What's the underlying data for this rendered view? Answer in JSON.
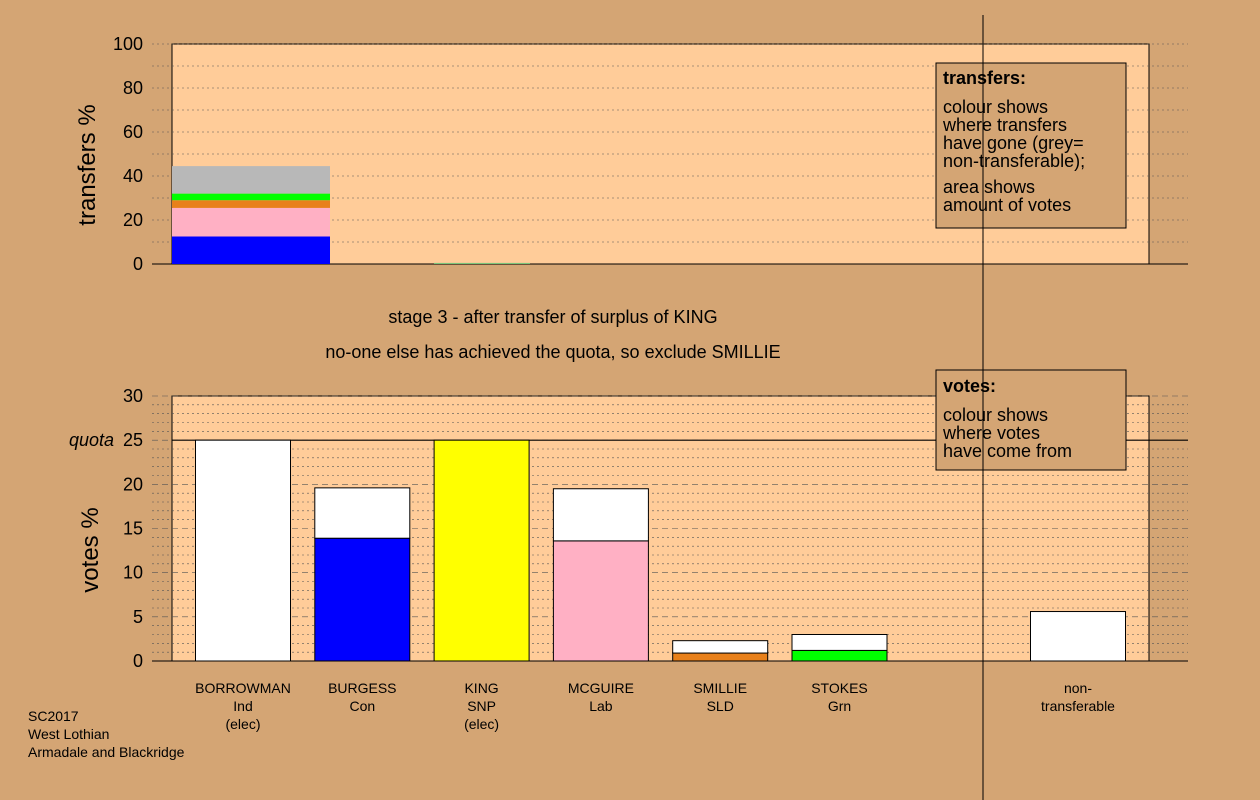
{
  "chart_data": [
    {
      "type": "bar",
      "stacked": true,
      "ylabel": "transfers %",
      "ylim": [
        0,
        100
      ],
      "yticks": [
        0,
        20,
        40,
        60,
        80,
        100
      ],
      "grid": "dotted horizontal",
      "categories": [
        "BORROWMAN",
        "BURGESS",
        "KING",
        "MCGUIRE",
        "SMILLIE",
        "STOKES",
        "non-transferable"
      ],
      "transfers": [
        {
          "to": "BURGESS",
          "color": "#0000ff",
          "value": 12.5
        },
        {
          "to": "MCGUIRE",
          "color": "#ffb0c4",
          "value": 13.0
        },
        {
          "to": "SMILLIE",
          "color": "#e8801a",
          "value": 3.5
        },
        {
          "to": "STOKES",
          "color": "#00ff00",
          "value": 3.0
        },
        {
          "to": "non-transferable",
          "color": "#b8b8b8",
          "value": 12.5
        }
      ],
      "king_residual": 0.5,
      "legend": {
        "title": "transfers:",
        "lines": [
          "colour shows",
          "where transfers",
          "have gone (grey=",
          "non-transferable);",
          "",
          "area shows",
          "amount of votes"
        ]
      }
    },
    {
      "type": "bar",
      "stacked": true,
      "ylabel": "votes %",
      "ylim": [
        0,
        30
      ],
      "yticks": [
        0,
        5,
        10,
        15,
        20,
        25,
        30
      ],
      "quota": 25,
      "quota_label": "quota",
      "candidates": [
        {
          "name": "BORROWMAN",
          "line2": "Ind",
          "line3": "(elec)",
          "segments": [
            {
              "color": "#ffffff",
              "value": 25.0
            }
          ]
        },
        {
          "name": "BURGESS",
          "line2": "Con",
          "line3": "",
          "segments": [
            {
              "color": "#0000ff",
              "value": 13.9
            },
            {
              "color": "#ffffff",
              "value": 5.7
            }
          ]
        },
        {
          "name": "KING",
          "line2": "SNP",
          "line3": "(elec)",
          "segments": [
            {
              "color": "#ffff00",
              "value": 25.0
            }
          ]
        },
        {
          "name": "MCGUIRE",
          "line2": "Lab",
          "line3": "",
          "segments": [
            {
              "color": "#ffb0c4",
              "value": 13.6
            },
            {
              "color": "#ffffff",
              "value": 5.9
            }
          ]
        },
        {
          "name": "SMILLIE",
          "line2": "SLD",
          "line3": "",
          "segments": [
            {
              "color": "#e8801a",
              "value": 0.9
            },
            {
              "color": "#ffffff",
              "value": 1.4
            }
          ]
        },
        {
          "name": "STOKES",
          "line2": "Grn",
          "line3": "",
          "segments": [
            {
              "color": "#00ff00",
              "value": 1.2
            },
            {
              "color": "#ffffff",
              "value": 1.8
            }
          ]
        }
      ],
      "nontransferable": {
        "line1": "non-",
        "line2": "transferable",
        "value": 5.6
      },
      "legend": {
        "title": "votes:",
        "lines": [
          "colour shows",
          "where votes",
          "have come from"
        ]
      }
    }
  ],
  "stage_line1": "stage 3 - after transfer of surplus of KING",
  "stage_line2": "no-one else has achieved the quota, so exclude SMILLIE",
  "footer": [
    "SC2017",
    "West Lothian",
    "Armadale and Blackridge"
  ]
}
